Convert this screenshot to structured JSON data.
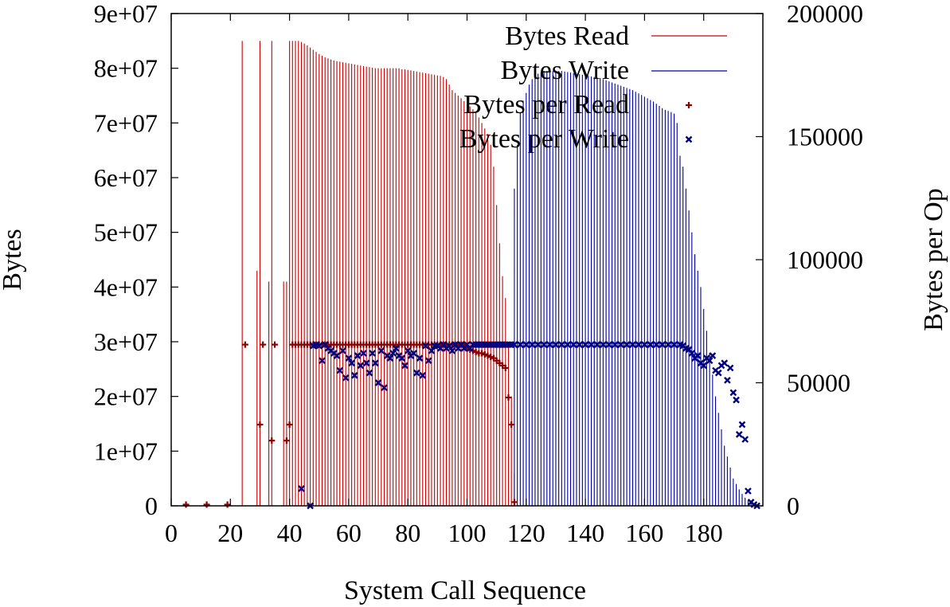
{
  "chart_data": {
    "type": "bar",
    "title": "",
    "xlabel": "System Call Sequence",
    "ylabel": "Bytes",
    "y2label": "Bytes per Op",
    "xlim": [
      0,
      200
    ],
    "ylim": [
      0,
      90000000
    ],
    "y2lim": [
      0,
      200000
    ],
    "x_ticks": [
      "0",
      "20",
      "40",
      "60",
      "80",
      "100",
      "120",
      "140",
      "160",
      "180"
    ],
    "y_ticks": [
      "0",
      "1e+07",
      "2e+07",
      "3e+07",
      "4e+07",
      "5e+07",
      "6e+07",
      "7e+07",
      "8e+07",
      "9e+07"
    ],
    "y2_ticks": [
      "0",
      "50000",
      "100000",
      "150000",
      "200000"
    ],
    "legend_position": "top-right",
    "grid": false,
    "colors": {
      "read": "#cc0000",
      "write": "#0000aa",
      "read_points": "#8b0000",
      "write_points": "#000080"
    },
    "series": [
      {
        "name": "Bytes Read",
        "kind": "impulses",
        "axis": "y",
        "x": [
          24,
          29,
          30,
          33,
          34,
          38,
          39,
          40,
          41,
          42,
          43,
          44,
          45,
          46,
          47,
          48,
          49,
          50,
          51,
          52,
          53,
          54,
          55,
          56,
          57,
          58,
          59,
          60,
          61,
          62,
          63,
          64,
          65,
          66,
          67,
          68,
          69,
          70,
          71,
          72,
          73,
          74,
          75,
          76,
          77,
          78,
          79,
          80,
          81,
          82,
          83,
          84,
          85,
          86,
          87,
          88,
          89,
          90,
          91,
          92,
          93,
          94,
          95,
          96,
          97,
          98,
          99,
          100,
          101,
          102,
          103,
          104,
          105,
          106,
          107,
          108,
          109,
          110,
          111,
          112,
          113,
          114,
          115,
          116
        ],
        "values": [
          85000000,
          43000000,
          85000000,
          41000000,
          85000000,
          41000000,
          41000000,
          85000000,
          85000000,
          85000000,
          85000000,
          84800000,
          84500000,
          84200000,
          83800000,
          83400000,
          83000000,
          82600000,
          82300000,
          82000000,
          81800000,
          81600000,
          81400000,
          81300000,
          81200000,
          81100000,
          81000000,
          80900000,
          80800000,
          80700000,
          80600000,
          80500000,
          80400000,
          80300000,
          80200000,
          80100000,
          80000000,
          80000000,
          80000000,
          80000000,
          80000000,
          80000000,
          80000000,
          80000000,
          80000000,
          79800000,
          79800000,
          79700000,
          79600000,
          79500000,
          79400000,
          79300000,
          79200000,
          79100000,
          79000000,
          78900000,
          78800000,
          78700000,
          78600000,
          78400000,
          78000000,
          77000000,
          76000000,
          75500000,
          75000000,
          74500000,
          74000000,
          73500000,
          73000000,
          72500000,
          72000000,
          71000000,
          70000000,
          69000000,
          68000000,
          66000000,
          62000000,
          55000000,
          48000000,
          42000000,
          38000000,
          30000000,
          20000000,
          6000000
        ]
      },
      {
        "name": "Bytes Write",
        "kind": "impulses",
        "axis": "y",
        "x": [
          116,
          117,
          118,
          119,
          120,
          121,
          122,
          123,
          124,
          125,
          126,
          127,
          128,
          129,
          130,
          131,
          132,
          133,
          134,
          135,
          136,
          137,
          138,
          139,
          140,
          141,
          142,
          143,
          144,
          145,
          146,
          147,
          148,
          149,
          150,
          151,
          152,
          153,
          154,
          155,
          156,
          157,
          158,
          159,
          160,
          161,
          162,
          163,
          164,
          165,
          166,
          167,
          168,
          169,
          170,
          171,
          172,
          173,
          174,
          175,
          176,
          177,
          178,
          179,
          180,
          181,
          182,
          183,
          184,
          185,
          186,
          187,
          188,
          189,
          190,
          191,
          192,
          193,
          194,
          195,
          196,
          197,
          198
        ],
        "values": [
          58000000,
          66000000,
          72000000,
          74000000,
          75500000,
          77000000,
          78000000,
          78500000,
          79000000,
          79300000,
          79500000,
          79500000,
          79500000,
          79500000,
          79500000,
          79500000,
          79500000,
          79400000,
          79300000,
          79200000,
          79100000,
          79000000,
          78900000,
          78800000,
          78700000,
          78600000,
          78500000,
          78400000,
          78300000,
          78200000,
          78000000,
          77800000,
          77600000,
          77400000,
          77200000,
          77000000,
          76800000,
          76600000,
          76400000,
          76200000,
          76000000,
          75700000,
          75400000,
          75100000,
          74800000,
          74500000,
          74200000,
          73900000,
          73500000,
          73100000,
          72700000,
          72400000,
          72200000,
          72000000,
          71700000,
          70000000,
          64000000,
          62000000,
          58000000,
          54000000,
          50000000,
          46000000,
          43000000,
          40000000,
          36000000,
          32000000,
          28000000,
          24000000,
          20000000,
          17000000,
          14000000,
          11000000,
          9000000,
          7000000,
          5000000,
          4000000,
          3000000,
          2200000,
          1500000,
          1000000,
          600000,
          300000,
          100000
        ]
      },
      {
        "name": "Bytes per Read",
        "kind": "points",
        "axis": "y2",
        "x": [
          5,
          12,
          19,
          25,
          30,
          31,
          34,
          35,
          39,
          40,
          41,
          42,
          43,
          44,
          45,
          46,
          47,
          48,
          49,
          50,
          51,
          52,
          53,
          54,
          55,
          56,
          57,
          58,
          59,
          60,
          61,
          62,
          63,
          64,
          65,
          66,
          67,
          68,
          69,
          70,
          71,
          72,
          73,
          74,
          75,
          76,
          77,
          78,
          79,
          80,
          81,
          82,
          83,
          84,
          85,
          86,
          87,
          88,
          89,
          90,
          91,
          92,
          93,
          94,
          95,
          96,
          97,
          98,
          99,
          100,
          101,
          102,
          103,
          104,
          105,
          106,
          107,
          108,
          109,
          110,
          111,
          112,
          113,
          114,
          115,
          116
        ],
        "values": [
          500,
          500,
          500,
          65500,
          33000,
          65500,
          26500,
          65500,
          26500,
          33000,
          65500,
          65500,
          65500,
          65500,
          65500,
          65500,
          65500,
          65500,
          65500,
          65500,
          65500,
          65500,
          65500,
          65500,
          65500,
          65500,
          65500,
          65500,
          65500,
          65500,
          65500,
          65500,
          65500,
          65500,
          65500,
          65500,
          65500,
          65500,
          65500,
          65500,
          65500,
          65500,
          65500,
          65500,
          65500,
          65500,
          65500,
          65500,
          65500,
          65500,
          65500,
          65500,
          65500,
          65500,
          65500,
          65500,
          65500,
          65500,
          65500,
          65500,
          65500,
          65500,
          65500,
          65500,
          65500,
          65500,
          65500,
          65500,
          65500,
          64000,
          63500,
          63000,
          62500,
          62000,
          62000,
          61500,
          61000,
          60500,
          60000,
          59000,
          58000,
          57000,
          56000,
          44000,
          33000,
          1500
        ]
      },
      {
        "name": "Bytes per Write",
        "kind": "points",
        "axis": "y2",
        "x": [
          44,
          47,
          48,
          49,
          50,
          51,
          52,
          53,
          54,
          55,
          56,
          57,
          58,
          59,
          60,
          61,
          62,
          63,
          64,
          65,
          66,
          67,
          68,
          69,
          70,
          71,
          72,
          73,
          74,
          75,
          76,
          77,
          78,
          79,
          80,
          81,
          82,
          83,
          84,
          85,
          86,
          87,
          88,
          89,
          90,
          91,
          92,
          93,
          94,
          95,
          96,
          97,
          98,
          99,
          100,
          101,
          102,
          103,
          104,
          105,
          106,
          107,
          108,
          109,
          110,
          111,
          112,
          113,
          114,
          115,
          116,
          118,
          120,
          122,
          124,
          126,
          128,
          130,
          132,
          134,
          136,
          138,
          140,
          142,
          144,
          146,
          148,
          150,
          152,
          154,
          156,
          158,
          160,
          162,
          164,
          166,
          168,
          170,
          172,
          173,
          174,
          175,
          176,
          177,
          178,
          179,
          180,
          181,
          182,
          183,
          184,
          185,
          186,
          187,
          188,
          189,
          190,
          191,
          192,
          193,
          194,
          195,
          196,
          197,
          198
        ],
        "values": [
          7000,
          0,
          65000,
          65500,
          65000,
          59000,
          65500,
          64000,
          63000,
          62000,
          61000,
          55000,
          63000,
          52000,
          60000,
          58000,
          53000,
          61000,
          57000,
          62000,
          58000,
          54000,
          62000,
          58000,
          50000,
          63000,
          48000,
          61000,
          60000,
          62000,
          64000,
          61000,
          60000,
          57000,
          63000,
          61000,
          62000,
          54000,
          60000,
          53000,
          65000,
          59000,
          63000,
          65000,
          65000,
          64000,
          65500,
          64000,
          65000,
          63000,
          65500,
          64000,
          65500,
          64000,
          65500,
          64000,
          65500,
          65500,
          65500,
          65500,
          65500,
          65500,
          65500,
          65500,
          65500,
          65500,
          65500,
          65500,
          65500,
          65500,
          65500,
          65500,
          65500,
          65500,
          65500,
          65500,
          65500,
          65500,
          65500,
          65500,
          65500,
          65500,
          65500,
          65500,
          65500,
          65500,
          65500,
          65500,
          65500,
          65500,
          65500,
          65500,
          65500,
          65500,
          65500,
          65500,
          65500,
          65500,
          65500,
          65000,
          64000,
          63500,
          62000,
          60000,
          61000,
          58000,
          57000,
          60000,
          59000,
          61000,
          55000,
          54000,
          57000,
          58000,
          51000,
          56000,
          46000,
          43000,
          29000,
          33000,
          27000,
          6000,
          1500,
          500,
          0
        ]
      }
    ]
  }
}
